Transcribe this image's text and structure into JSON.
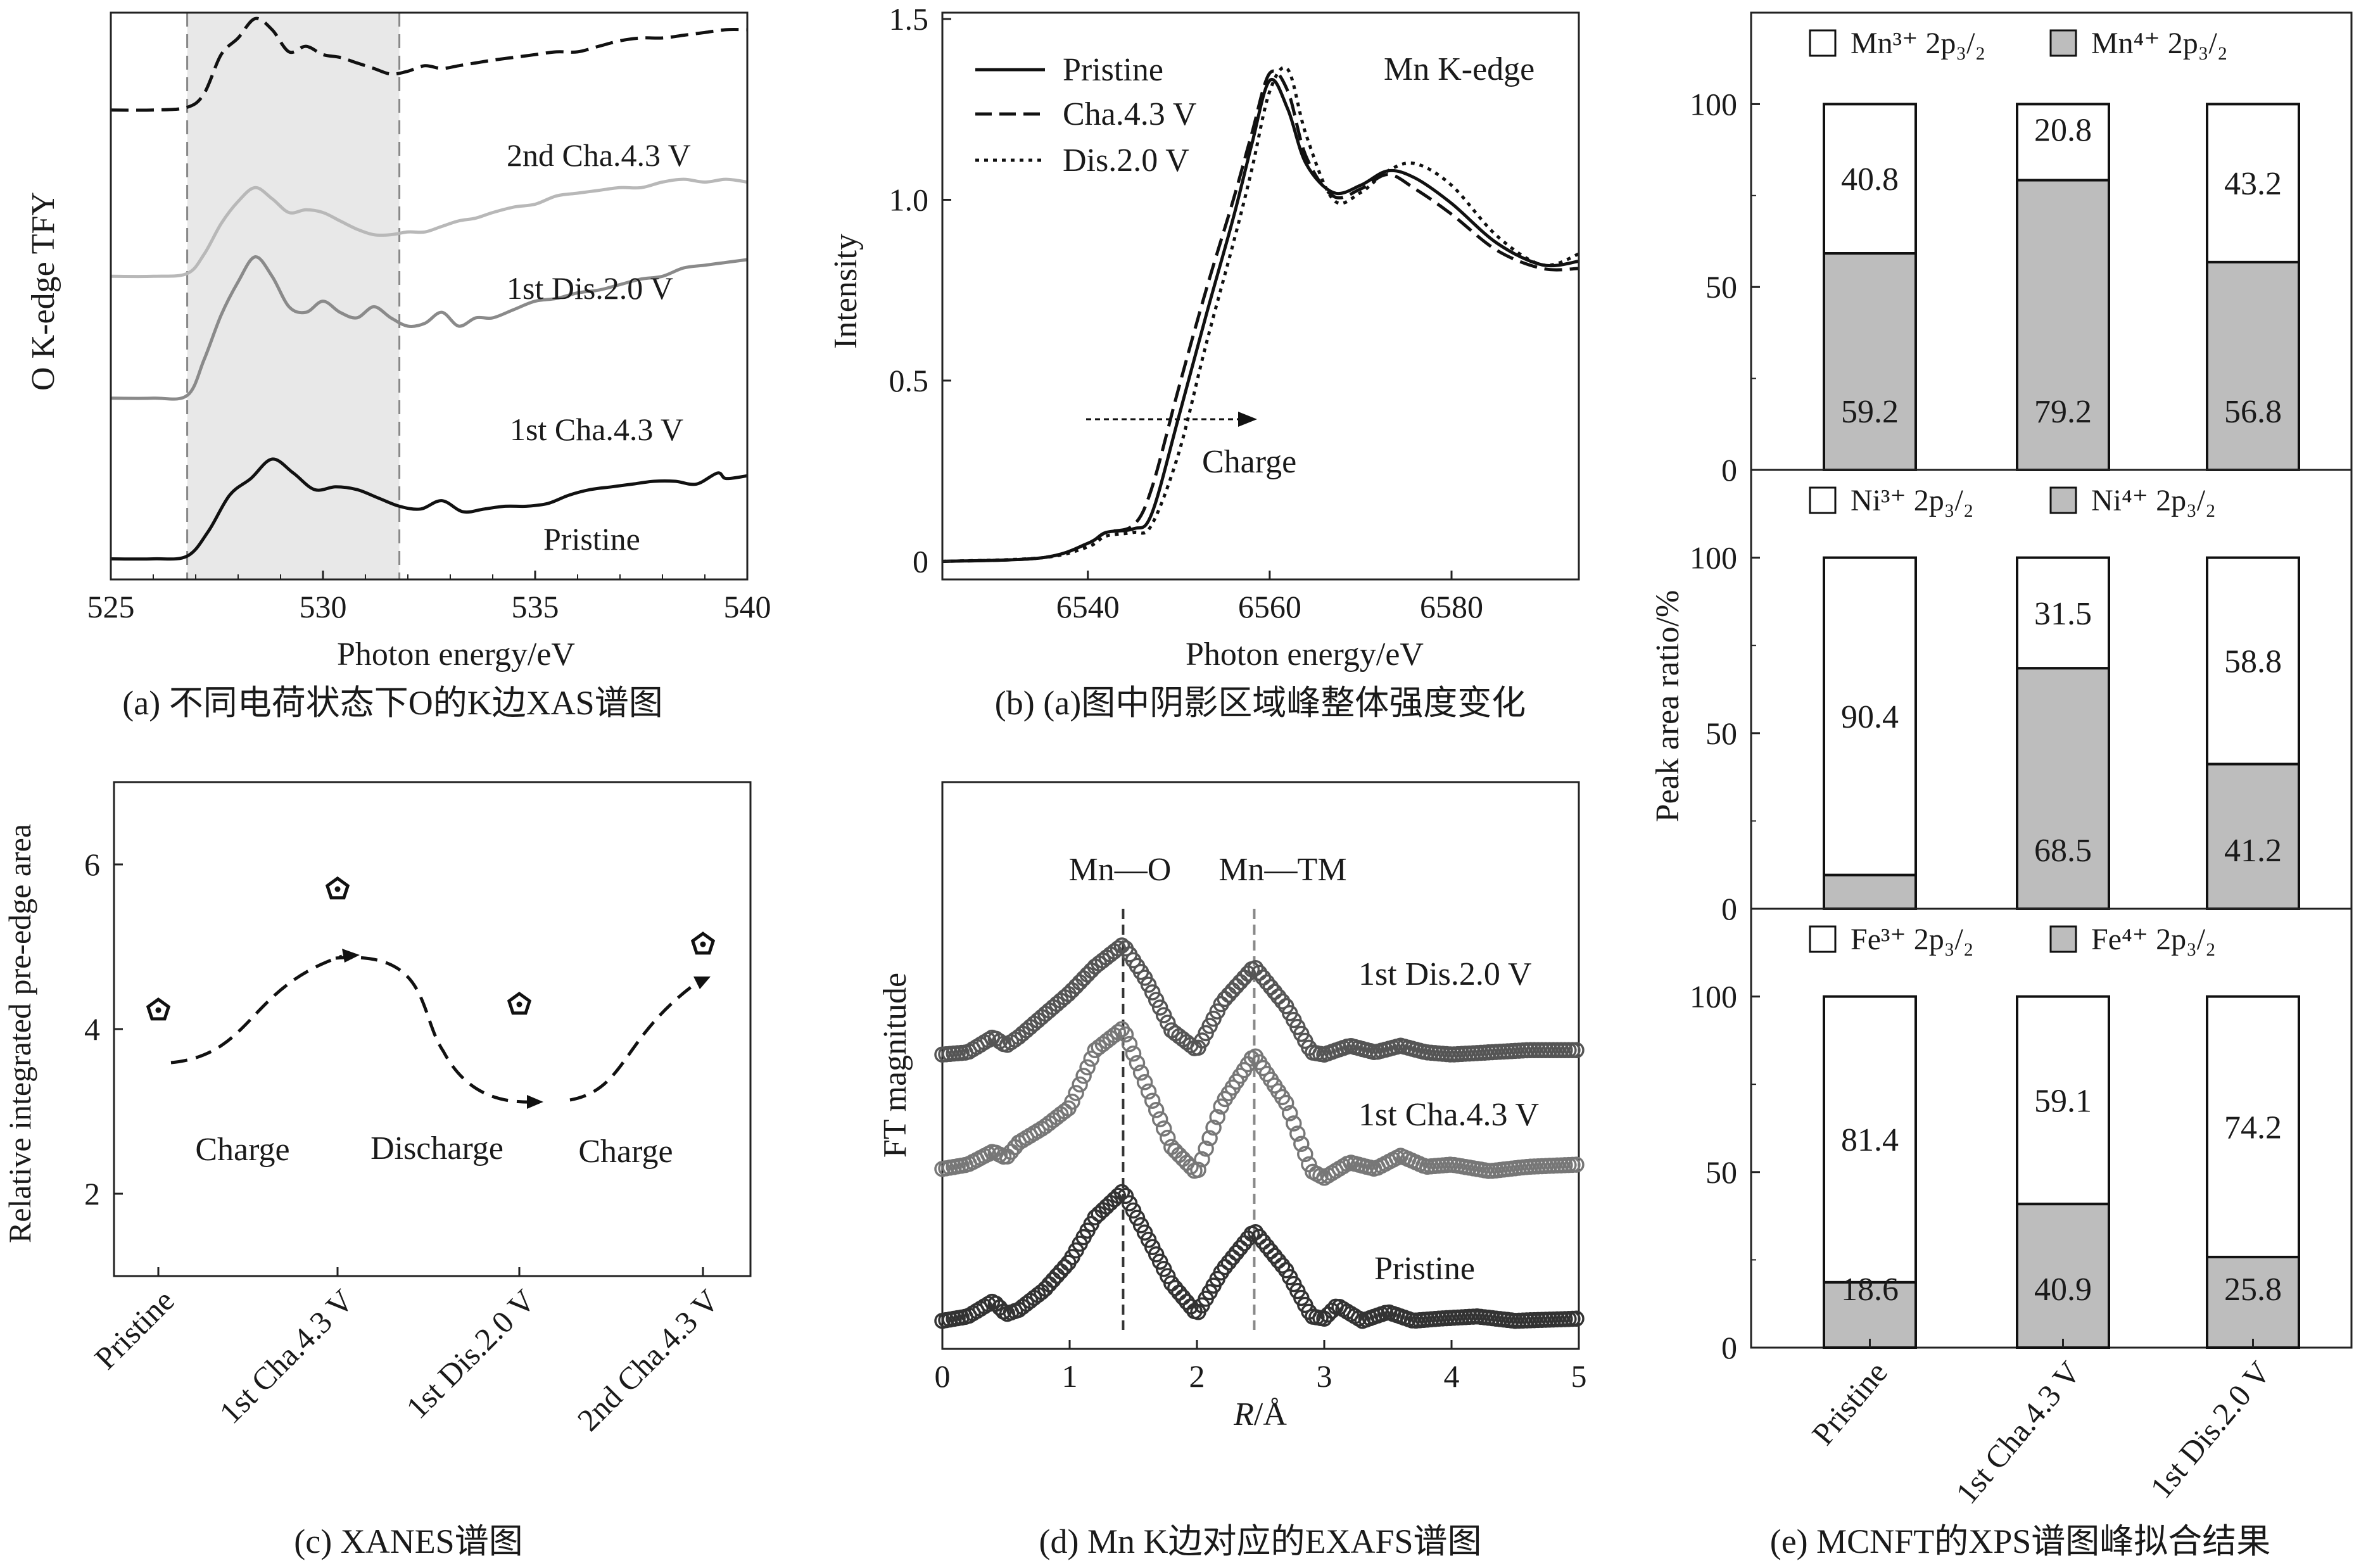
{
  "chart_data": [
    {
      "id": "a",
      "type": "line",
      "caption": "(a) 不同电荷状态下O的K边XAS谱图",
      "xlabel": "Photon energy/eV",
      "ylabel": "O K-edge TFY",
      "xlim": [
        525,
        540
      ],
      "ylim": [
        0,
        10
      ],
      "xticks": [
        "525",
        "530",
        "535",
        "540"
      ],
      "shaded_region": [
        526.8,
        531.8
      ],
      "series": [
        {
          "name": "Pristine",
          "label": "Pristine",
          "style": "solid",
          "color": "#111111",
          "x": [
            525,
            526,
            526.8,
            527.3,
            527.8,
            528.3,
            528.8,
            529.3,
            529.8,
            530.3,
            530.8,
            531.3,
            531.8,
            532.3,
            532.8,
            533.3,
            533.8,
            534.3,
            534.8,
            535.3,
            535.8,
            536.3,
            536.8,
            537.3,
            537.8,
            538.3,
            538.8,
            539.3,
            539.5,
            540
          ],
          "y": [
            0.2,
            0.2,
            0.25,
            0.7,
            1.35,
            1.65,
            2.0,
            1.75,
            1.45,
            1.5,
            1.45,
            1.3,
            1.15,
            1.1,
            1.25,
            1.05,
            1.1,
            1.15,
            1.15,
            1.2,
            1.35,
            1.45,
            1.5,
            1.55,
            1.6,
            1.6,
            1.55,
            1.75,
            1.65,
            1.7
          ]
        },
        {
          "name": "1st Cha.4.3 V",
          "label": "1st Cha.4.3 V",
          "style": "solid",
          "color": "#8a8a8a",
          "x": [
            525,
            526,
            526.8,
            527.2,
            527.6,
            528.0,
            528.4,
            528.8,
            529.2,
            529.6,
            530.0,
            530.4,
            530.8,
            531.2,
            531.6,
            532.0,
            532.4,
            532.8,
            533.2,
            533.6,
            534.0,
            534.5,
            535.0,
            535.5,
            536.0,
            536.5,
            537.0,
            537.5,
            538.0,
            538.5,
            539.0,
            539.5,
            540
          ],
          "y": [
            3.1,
            3.1,
            3.15,
            3.8,
            4.6,
            5.2,
            5.65,
            5.3,
            4.75,
            4.65,
            4.85,
            4.65,
            4.55,
            4.75,
            4.55,
            4.4,
            4.45,
            4.65,
            4.4,
            4.55,
            4.55,
            4.7,
            4.85,
            4.9,
            5.0,
            5.05,
            5.15,
            5.25,
            5.3,
            5.45,
            5.5,
            5.55,
            5.6
          ]
        },
        {
          "name": "1st Dis.2.0 V",
          "label": "1st Dis.2.0 V",
          "style": "solid",
          "color": "#b8b8b8",
          "x": [
            525,
            526,
            526.8,
            527.2,
            527.6,
            528.0,
            528.4,
            528.8,
            529.2,
            529.6,
            530.0,
            530.4,
            530.8,
            531.2,
            531.6,
            532.0,
            532.4,
            532.8,
            533.2,
            533.6,
            534.0,
            534.5,
            535.0,
            535.5,
            536.0,
            536.5,
            537.0,
            537.5,
            538.0,
            538.5,
            539.0,
            539.5,
            540
          ],
          "y": [
            5.3,
            5.3,
            5.35,
            5.7,
            6.25,
            6.65,
            6.9,
            6.7,
            6.45,
            6.5,
            6.45,
            6.3,
            6.15,
            6.05,
            6.05,
            6.1,
            6.1,
            6.2,
            6.3,
            6.35,
            6.45,
            6.55,
            6.6,
            6.75,
            6.8,
            6.85,
            6.9,
            6.9,
            7.0,
            7.05,
            7.0,
            7.05,
            7.0
          ]
        },
        {
          "name": "2nd Cha.4.3 V",
          "label": "2nd Cha.4.3 V",
          "style": "dashed",
          "color": "#111111",
          "x": [
            525,
            526,
            526.8,
            527.2,
            527.6,
            528.0,
            528.4,
            528.8,
            529.2,
            529.6,
            530.0,
            530.4,
            530.8,
            531.2,
            531.6,
            532.0,
            532.4,
            532.8,
            533.2,
            533.6,
            534.0,
            534.5,
            535.0,
            535.5,
            536.0,
            536.5,
            537.0,
            537.5,
            538.0,
            538.5,
            539.0,
            539.5,
            540
          ],
          "y": [
            8.3,
            8.3,
            8.35,
            8.6,
            9.3,
            9.6,
            9.95,
            9.75,
            9.35,
            9.45,
            9.3,
            9.25,
            9.15,
            9.05,
            8.95,
            9.0,
            9.1,
            9.05,
            9.1,
            9.15,
            9.2,
            9.25,
            9.3,
            9.35,
            9.35,
            9.45,
            9.55,
            9.6,
            9.6,
            9.65,
            9.7,
            9.75,
            9.75
          ]
        }
      ]
    },
    {
      "id": "b",
      "type": "line",
      "caption": "(b) (a)图中阴影区域峰整体强度变化",
      "xlabel": "Photon energy/eV",
      "ylabel": "Intensity",
      "xlim": [
        6524,
        6594
      ],
      "ylim": [
        -0.05,
        1.5
      ],
      "xticks": [
        "6540",
        "6560",
        "6580"
      ],
      "yticks": [
        "0",
        "0.5",
        "1.0",
        "1.5"
      ],
      "annotation_title": "Mn K-edge",
      "annotation_arrow": "Charge",
      "series": [
        {
          "name": "Pristine",
          "style": "solid",
          "x": [
            6524,
            6535,
            6540,
            6542,
            6545,
            6547,
            6550,
            6553,
            6556,
            6558,
            6560,
            6562,
            6564,
            6567,
            6570,
            6573,
            6576,
            6580,
            6585,
            6590,
            6594
          ],
          "y": [
            0.0,
            0.01,
            0.05,
            0.08,
            0.09,
            0.13,
            0.4,
            0.68,
            0.95,
            1.15,
            1.33,
            1.25,
            1.1,
            1.02,
            1.04,
            1.08,
            1.06,
            0.99,
            0.88,
            0.82,
            0.83
          ]
        },
        {
          "name": "Cha.4.3 V",
          "style": "dashed",
          "x": [
            6524,
            6535,
            6540,
            6542,
            6545,
            6547,
            6550,
            6553,
            6556,
            6558,
            6560,
            6562,
            6564,
            6567,
            6570,
            6573,
            6576,
            6580,
            6585,
            6590,
            6594
          ],
          "y": [
            0.0,
            0.01,
            0.05,
            0.08,
            0.1,
            0.2,
            0.48,
            0.75,
            1.0,
            1.18,
            1.35,
            1.3,
            1.12,
            1.01,
            1.03,
            1.07,
            1.03,
            0.96,
            0.86,
            0.81,
            0.81
          ]
        },
        {
          "name": "Dis.2.0 V",
          "style": "dotted",
          "x": [
            6524,
            6535,
            6540,
            6542,
            6545,
            6547,
            6550,
            6553,
            6556,
            6558,
            6560,
            6562,
            6564,
            6567,
            6570,
            6573,
            6576,
            6580,
            6585,
            6590,
            6594
          ],
          "y": [
            0.0,
            0.01,
            0.04,
            0.07,
            0.08,
            0.1,
            0.3,
            0.6,
            0.88,
            1.08,
            1.3,
            1.36,
            1.18,
            1.0,
            1.02,
            1.08,
            1.1,
            1.04,
            0.9,
            0.82,
            0.85
          ]
        }
      ]
    },
    {
      "id": "c",
      "type": "scatter",
      "caption": "(c) XANES谱图",
      "ylabel": "Relative integrated pre-edge area",
      "ylim": [
        1.0,
        7.0
      ],
      "yticks": [
        "2",
        "4",
        "6"
      ],
      "categories": [
        "Pristine",
        "1st Cha.4.3 V",
        "1st Dis.2.0 V",
        "2nd Cha.4.3 V"
      ],
      "values": [
        4.23,
        5.7,
        4.3,
        5.03
      ],
      "stage_labels": [
        "Charge",
        "Discharge",
        "Charge"
      ]
    },
    {
      "id": "d",
      "type": "line",
      "caption": "(d) Mn K边对应的EXAFS谱图",
      "xlabel": "R/Å",
      "xlabel_var": "R",
      "xlabel_unit": "/Å",
      "ylabel": "FT magnitude",
      "xlim": [
        0,
        5
      ],
      "ylim": [
        0,
        10
      ],
      "xticks": [
        "0",
        "1",
        "2",
        "3",
        "4",
        "5"
      ],
      "markers": [
        {
          "label": "Mn—O",
          "x": 1.42
        },
        {
          "label": "Mn—TM",
          "x": 2.45
        }
      ],
      "series": [
        {
          "name": "Pristine",
          "label": "Pristine",
          "color": "#333333",
          "x": [
            0,
            0.2,
            0.4,
            0.5,
            0.6,
            0.8,
            1.0,
            1.2,
            1.42,
            1.6,
            1.8,
            2.0,
            2.2,
            2.45,
            2.7,
            2.9,
            3.0,
            3.1,
            3.3,
            3.5,
            3.7,
            3.9,
            4.2,
            4.5,
            5.0
          ],
          "y": [
            0.35,
            0.45,
            0.8,
            0.5,
            0.6,
            1.05,
            1.7,
            2.7,
            3.3,
            2.3,
            1.2,
            0.5,
            1.5,
            2.4,
            1.5,
            0.45,
            0.4,
            0.7,
            0.35,
            0.55,
            0.35,
            0.4,
            0.45,
            0.35,
            0.4
          ]
        },
        {
          "name": "1st Cha.4.3 V",
          "label": "1st Cha.4.3 V",
          "color": "#777777",
          "x": [
            0,
            0.2,
            0.4,
            0.5,
            0.6,
            0.8,
            1.0,
            1.2,
            1.42,
            1.6,
            1.8,
            2.0,
            2.2,
            2.45,
            2.7,
            2.9,
            3.0,
            3.2,
            3.4,
            3.6,
            3.8,
            4.0,
            4.3,
            4.6,
            5.0
          ],
          "y": [
            3.8,
            3.9,
            4.2,
            4.05,
            4.4,
            4.75,
            5.2,
            6.5,
            7.0,
            5.7,
            4.3,
            3.7,
            5.3,
            6.4,
            5.3,
            3.75,
            3.6,
            3.95,
            3.8,
            4.1,
            3.85,
            3.9,
            3.75,
            3.85,
            3.9
          ]
        },
        {
          "name": "1st Dis.2.0 V",
          "label": "1st Dis.2.0 V",
          "color": "#555555",
          "x": [
            0,
            0.2,
            0.4,
            0.5,
            0.6,
            0.8,
            1.0,
            1.2,
            1.42,
            1.6,
            1.8,
            2.0,
            2.2,
            2.45,
            2.7,
            2.9,
            3.0,
            3.2,
            3.4,
            3.6,
            3.8,
            4.0,
            4.3,
            4.6,
            5.0
          ],
          "y": [
            6.4,
            6.45,
            6.8,
            6.6,
            6.8,
            7.3,
            7.8,
            8.4,
            8.9,
            8.1,
            6.95,
            6.5,
            7.6,
            8.4,
            7.5,
            6.45,
            6.4,
            6.6,
            6.45,
            6.6,
            6.45,
            6.4,
            6.45,
            6.5,
            6.5
          ]
        }
      ]
    },
    {
      "id": "e",
      "type": "bar",
      "stacked": true,
      "caption": "(e) MCNFT的XPS谱图峰拟合结果",
      "ylabel": "Peak area ratio/%",
      "categories": [
        "Pristine",
        "1st Cha.4.3 V",
        "1st Dis.2.0 V"
      ],
      "ylim": [
        0,
        125
      ],
      "yticks": [
        "0",
        "50",
        "100"
      ],
      "colors": {
        "low": "#ffffff",
        "high": "#bdbdbd",
        "edge": "#111111"
      },
      "panels": [
        {
          "element": "Mn",
          "legend_low": "Mn³⁺ 2p₃/₂",
          "legend_high": "Mn⁴⁺ 2p₃/₂",
          "series": [
            {
              "name": "Mn³⁺ 2p₃/₂",
              "values": [
                40.8,
                20.8,
                43.2
              ]
            },
            {
              "name": "Mn⁴⁺ 2p₃/₂",
              "values": [
                59.2,
                79.2,
                56.8
              ]
            }
          ],
          "labels_low": [
            "40.8",
            "20.8",
            "43.2"
          ],
          "labels_high": [
            "59.2",
            "79.2",
            "56.8"
          ]
        },
        {
          "element": "Ni",
          "legend_low": "Ni³⁺ 2p₃/₂",
          "legend_high": "Ni⁴⁺ 2p₃/₂",
          "series": [
            {
              "name": "Ni³⁺ 2p₃/₂",
              "values": [
                90.4,
                31.5,
                58.8
              ]
            },
            {
              "name": "Ni⁴⁺ 2p₃/₂",
              "values": [
                9.6,
                68.5,
                41.2
              ]
            }
          ],
          "labels_low": [
            "90.4",
            "31.5",
            "58.8"
          ],
          "labels_high": [
            "",
            "68.5",
            "41.2"
          ]
        },
        {
          "element": "Fe",
          "legend_low": "Fe³⁺ 2p₃/₂",
          "legend_high": "Fe⁴⁺ 2p₃/₂",
          "series": [
            {
              "name": "Fe³⁺ 2p₃/₂",
              "values": [
                81.4,
                59.1,
                74.2
              ]
            },
            {
              "name": "Fe⁴⁺ 2p₃/₂",
              "values": [
                18.6,
                40.9,
                25.8
              ]
            }
          ],
          "labels_low": [
            "81.4",
            "59.1",
            "74.2"
          ],
          "labels_high": [
            "18.6",
            "40.9",
            "25.8"
          ]
        }
      ]
    }
  ]
}
